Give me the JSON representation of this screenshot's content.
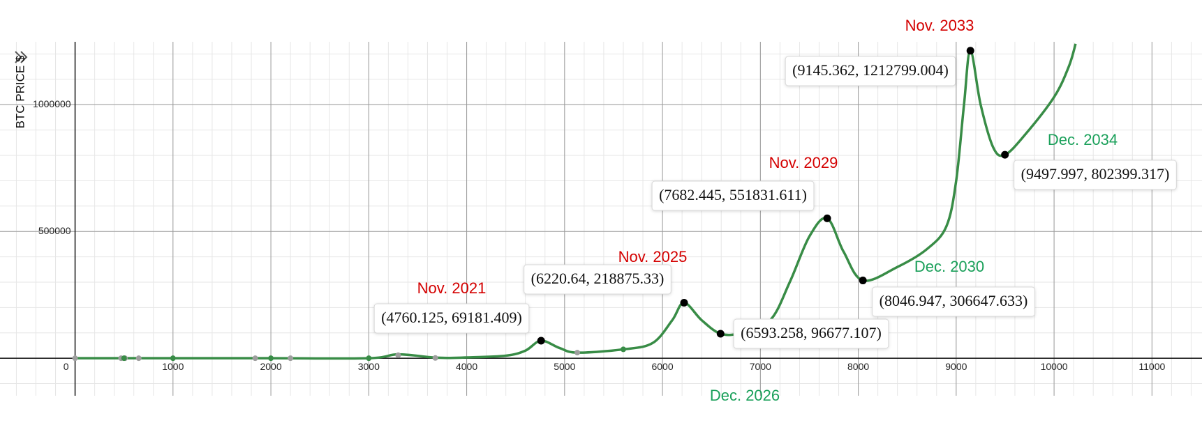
{
  "chart_data": {
    "type": "line",
    "y_axis_label": "BTC PRICE $",
    "xlim": [
      -767,
      11511
    ],
    "ylim": [
      -148000,
      1248000
    ],
    "xticks": [
      0,
      1000,
      2000,
      3000,
      4000,
      5000,
      6000,
      7000,
      8000,
      9000,
      10000,
      11000
    ],
    "yticks": [
      500000,
      1000000
    ],
    "grid": true,
    "series": [
      {
        "style": "line",
        "color": "#388c46",
        "x": [
          0,
          500,
          1000,
          2000,
          3000,
          3300,
          3700,
          4000,
          4400,
          4600,
          4760,
          4950,
          5130,
          5600,
          5900,
          6100,
          6220,
          6400,
          6593,
          6800,
          7100,
          7300,
          7500,
          7682,
          7850,
          8047,
          8400,
          8700,
          8900,
          9000,
          9080,
          9145,
          9250,
          9380,
          9498,
          9700,
          10000,
          10150,
          10220
        ],
        "values": [
          0,
          0,
          0,
          0,
          0,
          15000,
          2000,
          3000,
          10000,
          30000,
          69181,
          40000,
          22000,
          35000,
          60000,
          150000,
          218875,
          150000,
          96677,
          100000,
          150000,
          300000,
          480000,
          551832,
          420000,
          306648,
          360000,
          430000,
          520000,
          700000,
          1000000,
          1212799,
          1000000,
          830000,
          802399,
          880000,
          1030000,
          1150000,
          1240000
        ]
      },
      {
        "style": "points",
        "color": "#000000",
        "x": [
          4760.125,
          6220.64,
          6593.258,
          7682.445,
          8046.947,
          9145.362,
          9497.997
        ],
        "values": [
          69181.409,
          218875.33,
          96677.107,
          551831.611,
          306647.633,
          1212799.004,
          802399.317
        ],
        "value_labels": [
          "(4760.125, 69181.409)",
          "(6220.64, 218875.33)",
          "(6593.258, 96677.107)",
          "(7682.445, 551831.611)",
          "(8046.947, 306647.633)",
          "(9145.362, 1212799.004)",
          "(9497.997, 802399.317)"
        ]
      },
      {
        "style": "points",
        "color": "#9e9e9e",
        "x": [
          0,
          470,
          510,
          650,
          1840,
          2200,
          3300,
          3680,
          5130
        ],
        "values": [
          0,
          0,
          0,
          0,
          0,
          0,
          12000,
          1000,
          22000
        ]
      },
      {
        "style": "points",
        "color": "#388c46",
        "x": [
          500,
          1000,
          2000,
          3000,
          5600
        ],
        "values": [
          0,
          0,
          0,
          0,
          35000
        ]
      }
    ],
    "annotations": [
      {
        "text": "Nov. 2021",
        "color": "#d40000"
      },
      {
        "text": "Nov. 2025",
        "color": "#d40000"
      },
      {
        "text": "Dec. 2026",
        "color": "#1aa05a"
      },
      {
        "text": "Nov. 2029",
        "color": "#d40000"
      },
      {
        "text": "Dec. 2030",
        "color": "#1aa05a"
      },
      {
        "text": "Nov. 2033",
        "color": "#d40000"
      },
      {
        "text": "Dec. 2034",
        "color": "#1aa05a"
      }
    ]
  }
}
